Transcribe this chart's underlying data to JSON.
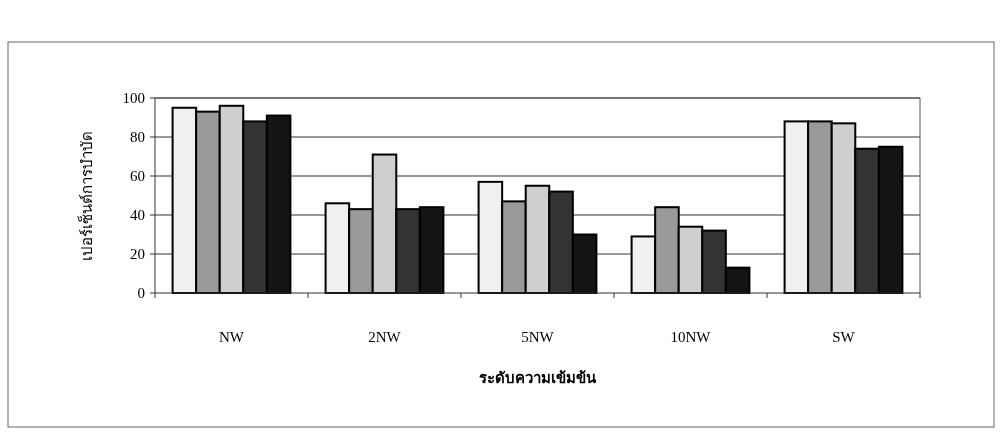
{
  "chart_data": {
    "type": "bar",
    "xlabel": "ระดับความเข้มข้น",
    "ylabel": "เปอร์เซ็นต์การบำบัด",
    "categories": [
      "NW",
      "2NW",
      "5NW",
      "10NW",
      "SW"
    ],
    "series": [
      {
        "color": "#f0f0f0",
        "values": [
          95,
          46,
          57,
          29,
          88
        ]
      },
      {
        "color": "#9a9a9a",
        "values": [
          93,
          43,
          47,
          44,
          88
        ]
      },
      {
        "color": "#cfcfcf",
        "values": [
          96,
          71,
          55,
          34,
          87
        ]
      },
      {
        "color": "#333333",
        "values": [
          88,
          43,
          52,
          32,
          74
        ]
      },
      {
        "color": "#141414",
        "values": [
          91,
          44,
          30,
          13,
          75
        ]
      }
    ],
    "ylim": [
      0,
      100
    ],
    "yticks": [
      0,
      20,
      40,
      60,
      80,
      100
    ],
    "grid": "y"
  }
}
